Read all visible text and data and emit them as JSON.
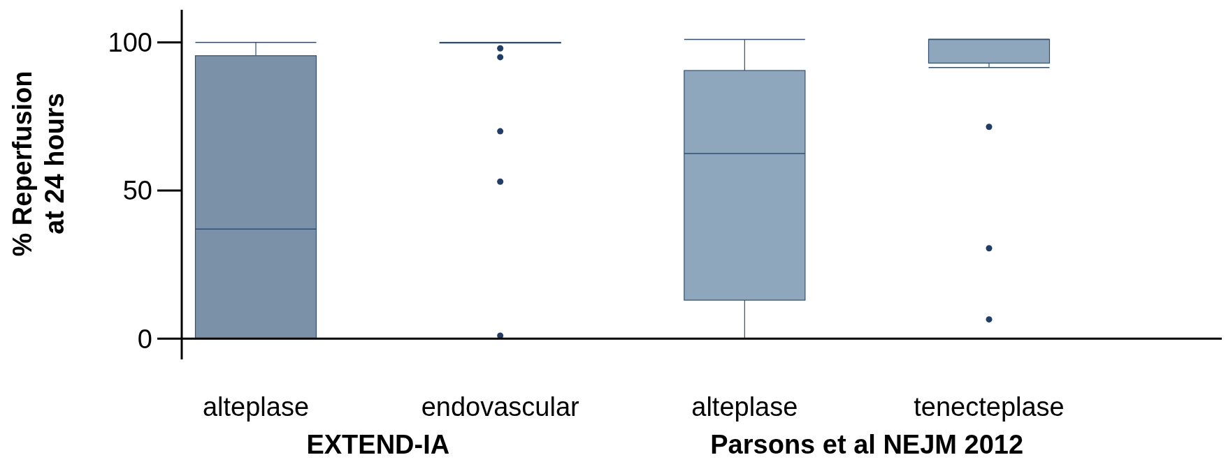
{
  "chart_data": {
    "type": "box",
    "ylabel": "% Reperfusion\nat 24 hours",
    "categories": [
      "alteplase",
      "endovascular",
      "alteplase",
      "tenecteplase"
    ],
    "colors": [
      "#7b91a8",
      "#7b91a8",
      "#8fa7bd",
      "#8fa7bd"
    ],
    "boxes": [
      {
        "low": 0,
        "q1": 0,
        "median": 37,
        "q3": 95.5,
        "high": 100
      },
      {
        "low": 100,
        "q1": 100,
        "median": 100,
        "q3": 100,
        "high": 100,
        "outliers": [
          98,
          95,
          70,
          53,
          1
        ]
      },
      {
        "low": 0,
        "q1": 13,
        "median": 62.5,
        "q3": 90.5,
        "high": 101
      },
      {
        "low": 91.5,
        "q1": 93,
        "median": 101,
        "q3": 101,
        "high": 101,
        "outliers": [
          71.5,
          30.5,
          6.5
        ]
      }
    ],
    "ylim": [
      -7,
      111
    ],
    "yticks": [
      0,
      50,
      100
    ],
    "annotations": [
      "EXTEND-IA",
      "Parsons et al NEJM 2012"
    ]
  }
}
